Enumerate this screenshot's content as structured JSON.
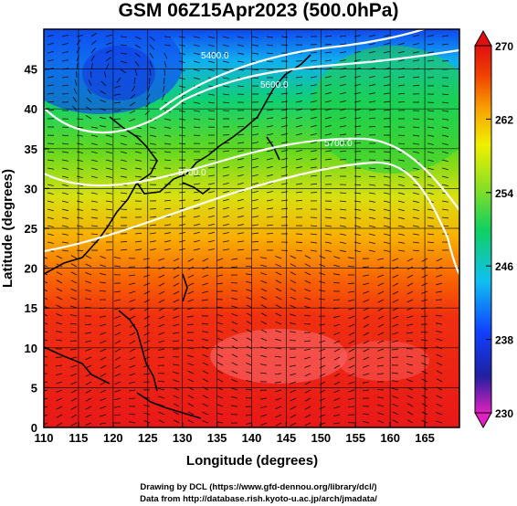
{
  "title": "GSM 06Z15Apr2023 (500.0hPa)",
  "x_axis": {
    "label": "Longitude (degrees)",
    "ticks": [
      110,
      115,
      120,
      125,
      130,
      135,
      140,
      145,
      150,
      155,
      160,
      165
    ],
    "range": [
      110,
      170
    ]
  },
  "y_axis": {
    "label": "Latitude  (degrees)",
    "ticks": [
      0,
      5,
      10,
      15,
      20,
      25,
      30,
      35,
      40,
      45
    ],
    "range": [
      0,
      50
    ]
  },
  "colorbar": {
    "labels": [
      270,
      262,
      254,
      246,
      238,
      230
    ],
    "range": [
      230,
      270
    ],
    "stops": [
      "#e020c0",
      "#2020a0",
      "#1040ff",
      "#10c0f0",
      "#10d060",
      "#90e020",
      "#f0f000",
      "#f8a000",
      "#f04000",
      "#e01010"
    ]
  },
  "contour_labels": [
    "5400.0",
    "5600.0",
    "5700.0",
    "5700.0",
    "5800.0"
  ],
  "credits": {
    "line1": "Drawing by DCL (https://www.gfd-dennou.org/library/dcl/)",
    "line2": "Data from http://database.rish.kyoto-u.ac.jp/arch/jmadata/"
  }
}
